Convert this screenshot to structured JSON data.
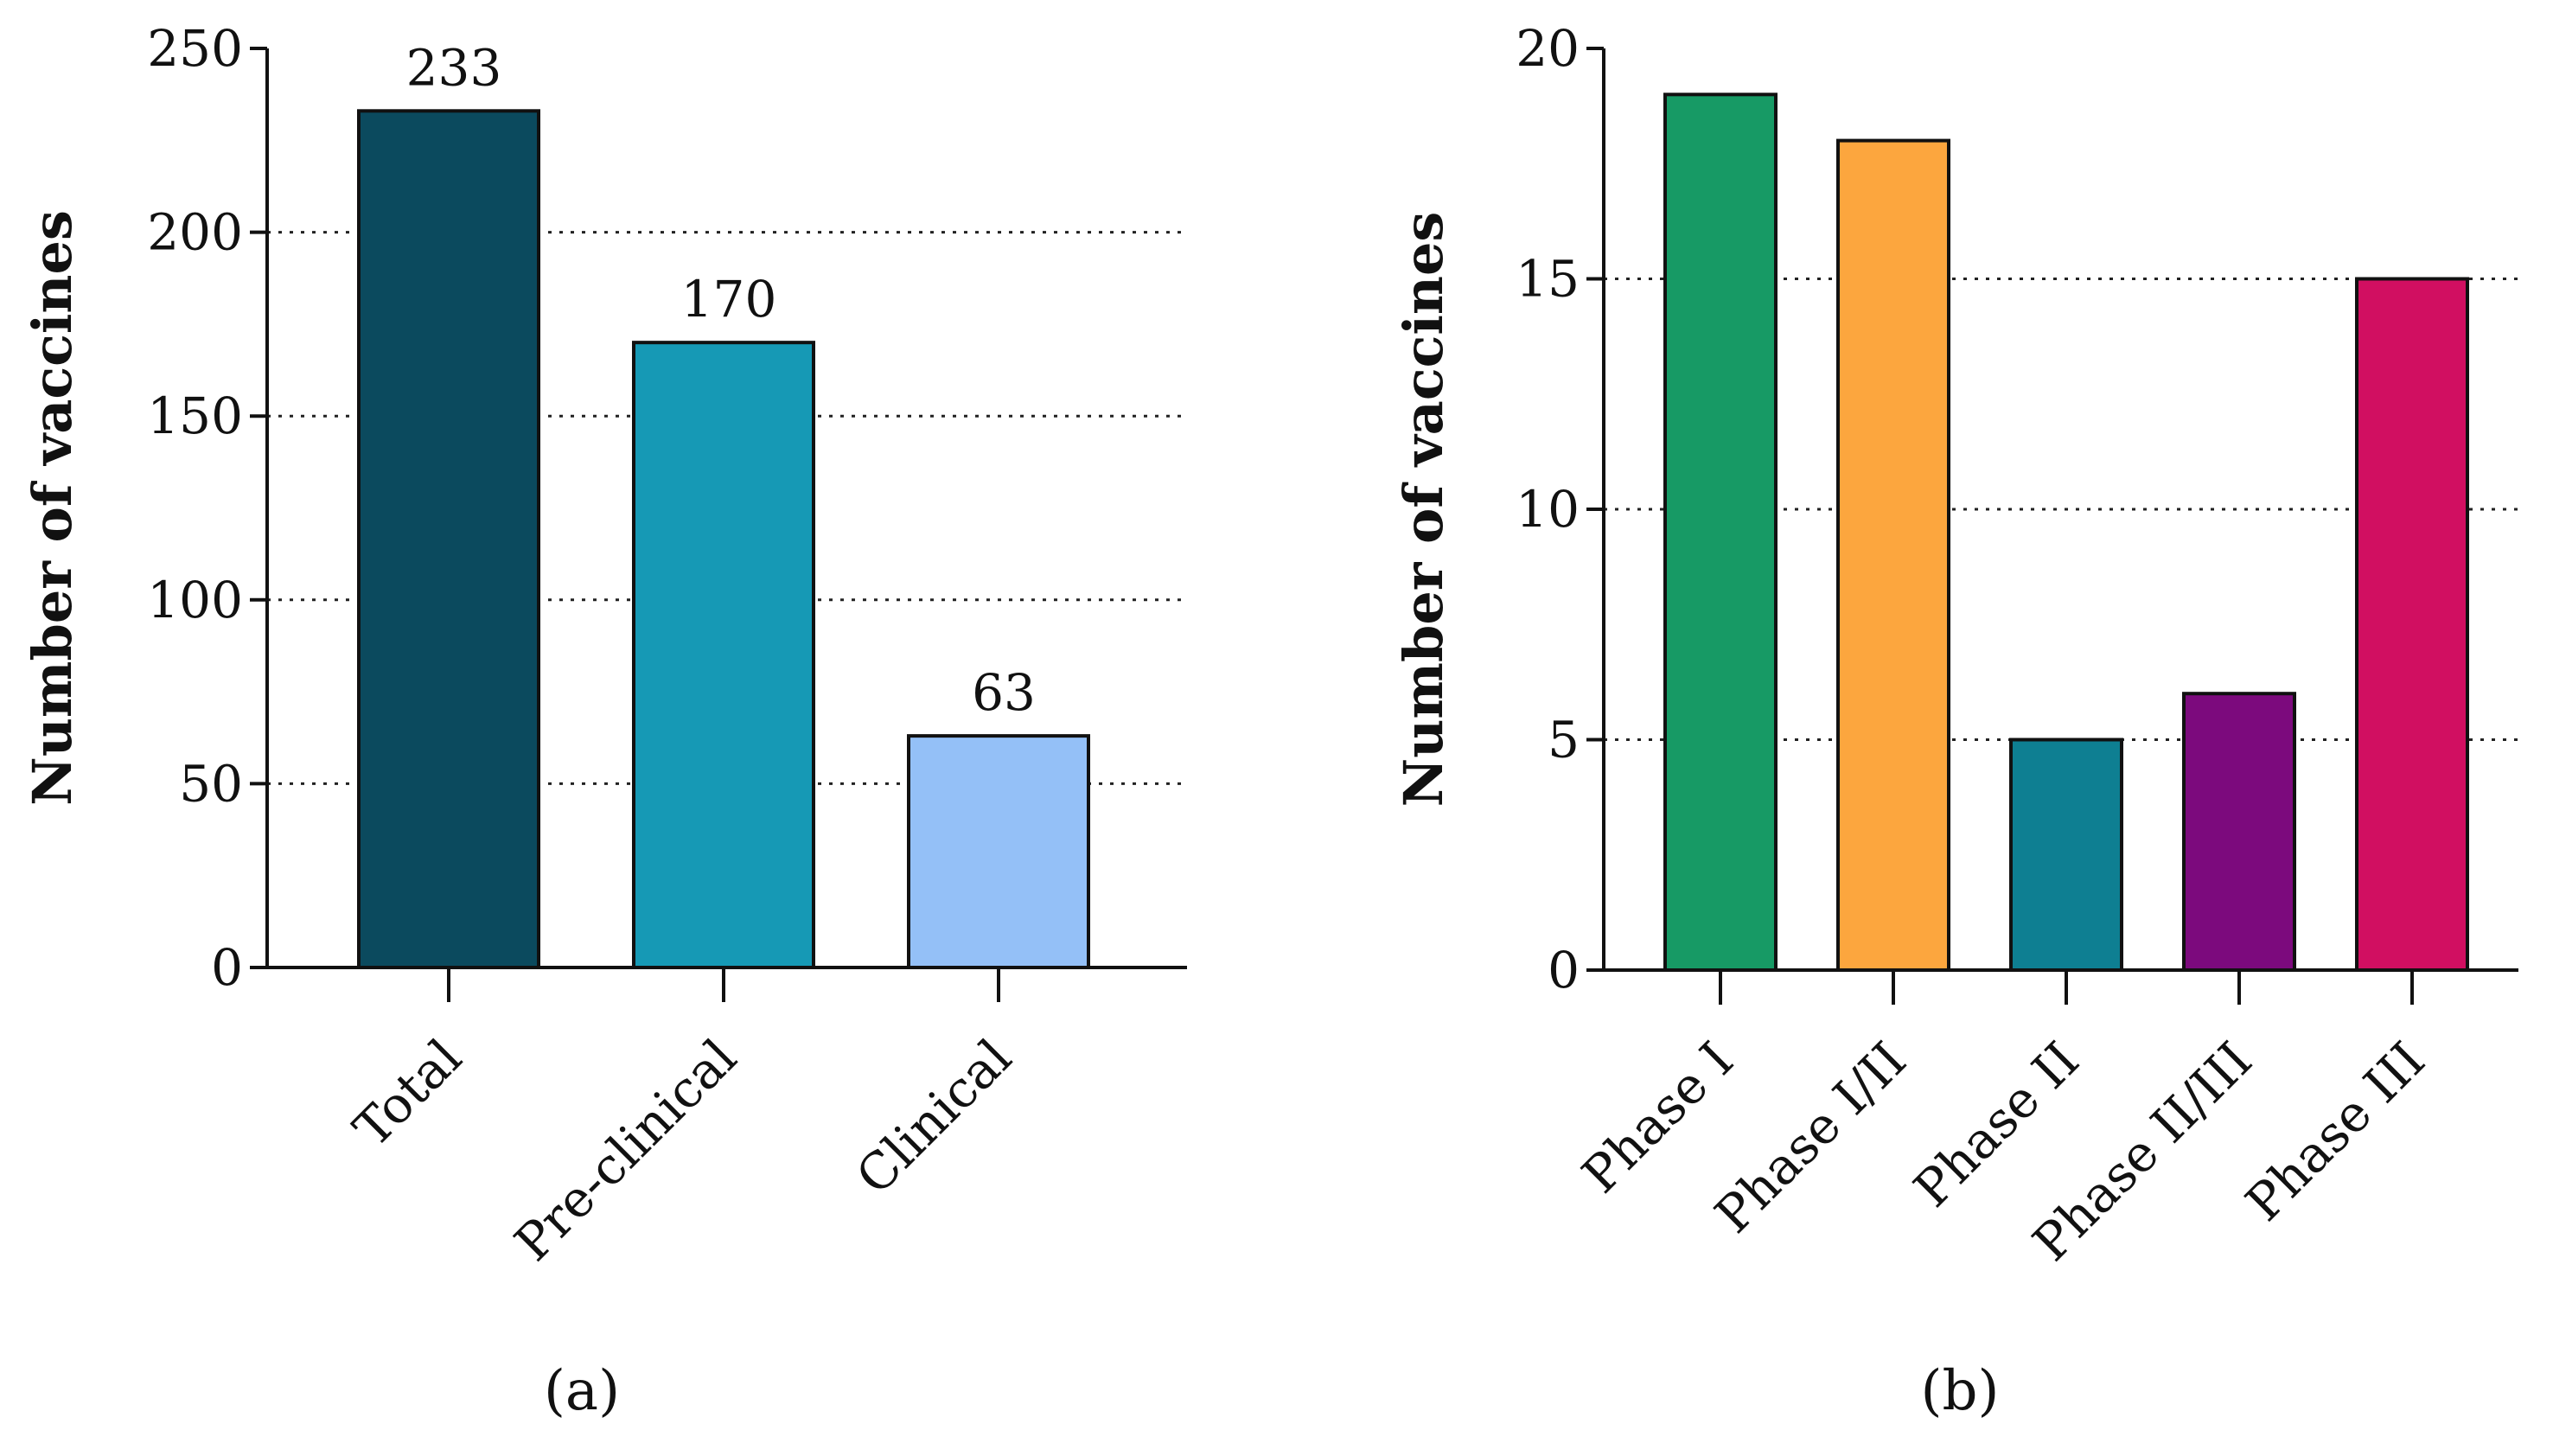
{
  "chart_data": [
    {
      "type": "bar",
      "title": "",
      "caption": "(a)",
      "xlabel": "",
      "ylabel": "Number of vaccines",
      "categories": [
        "Total",
        "Pre-clinical",
        "Clinical"
      ],
      "values": [
        233,
        170,
        63
      ],
      "data_labels": [
        "233",
        "170",
        "63"
      ],
      "colors": [
        "#0b4a5e",
        "#1699b5",
        "#94c0f7"
      ],
      "ylim": [
        0,
        250
      ],
      "yticks": [
        0,
        50,
        100,
        150,
        200,
        250
      ],
      "grid": "dotted horizontal at 50, 100, 150, 200"
    },
    {
      "type": "bar",
      "title": "",
      "caption": "(b)",
      "xlabel": "",
      "ylabel": "Number of vaccines",
      "categories": [
        "Phase I",
        "Phase I/II",
        "Phase II",
        "Phase II/III",
        "Phase III"
      ],
      "values": [
        19,
        18,
        5,
        6,
        15
      ],
      "colors": [
        "#179a65",
        "#fca63e",
        "#0e7f92",
        "#7c0a7d",
        "#d10f61"
      ],
      "ylim": [
        0,
        20
      ],
      "yticks": [
        0,
        5,
        10,
        15,
        20
      ],
      "grid": "dotted horizontal at 5, 10, 15"
    }
  ]
}
